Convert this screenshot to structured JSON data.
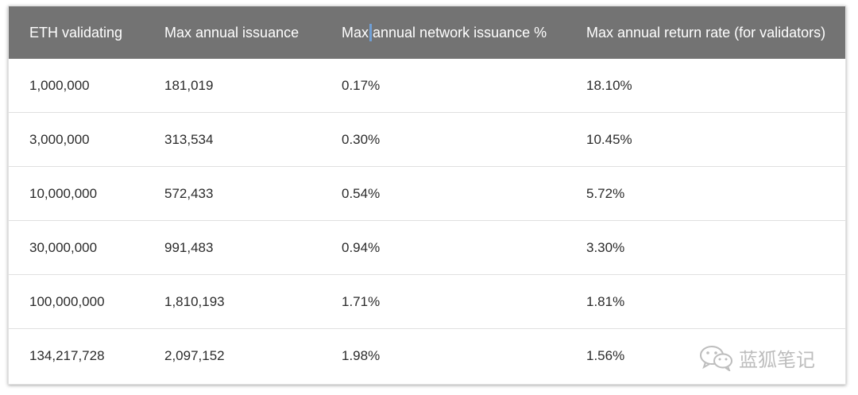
{
  "table": {
    "headers": [
      "ETH validating",
      "Max annual issuance",
      "Max annual network issuance %",
      "Max annual return rate (for validators)"
    ],
    "rows": [
      [
        "1,000,000",
        "181,019",
        "0.17%",
        "18.10%"
      ],
      [
        "3,000,000",
        "313,534",
        "0.30%",
        "10.45%"
      ],
      [
        "10,000,000",
        "572,433",
        "0.54%",
        "5.72%"
      ],
      [
        "30,000,000",
        "991,483",
        "0.94%",
        "3.30%"
      ],
      [
        "100,000,000",
        "1,810,193",
        "1.71%",
        "1.81%"
      ],
      [
        "134,217,728",
        "2,097,152",
        "1.98%",
        "1.56%"
      ]
    ]
  },
  "watermark": {
    "icon": "wechat-icon",
    "text": "蓝狐笔记"
  },
  "colors": {
    "header_bg": "#737373",
    "caret": "#6f9fd6"
  }
}
